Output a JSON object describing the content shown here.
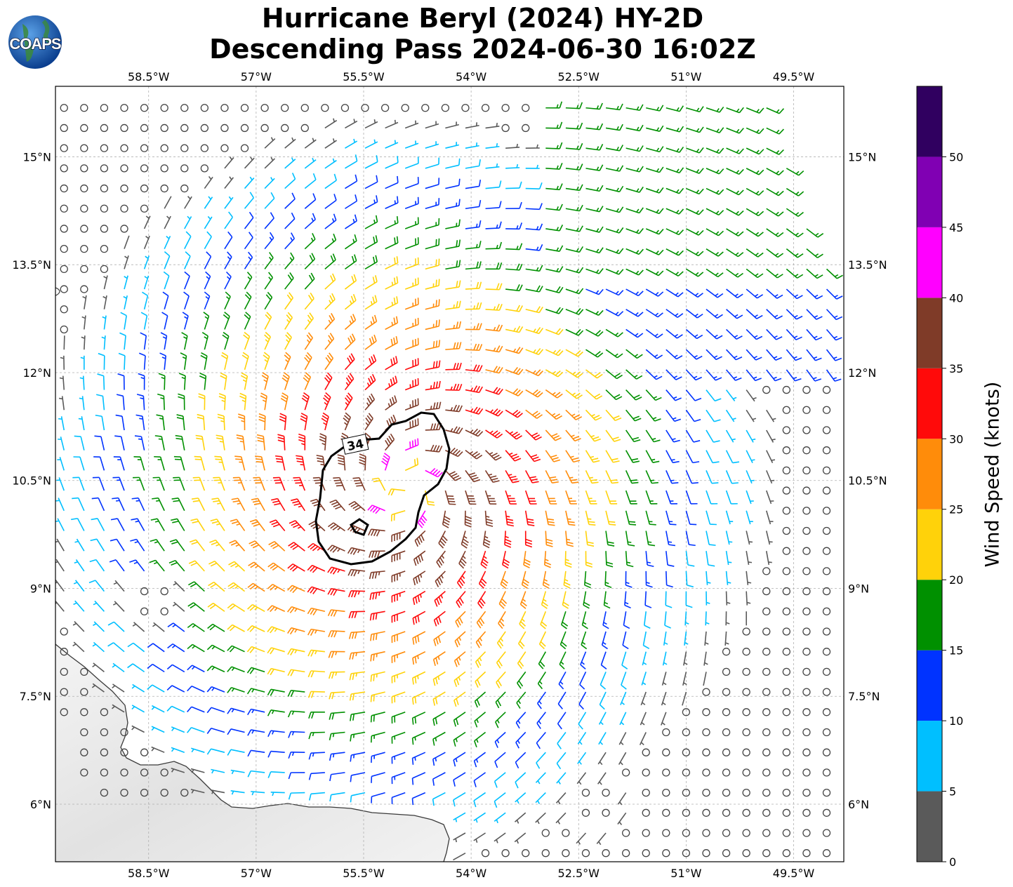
{
  "title": {
    "line1": "Hurricane Beryl (2024) HY-2D",
    "line2": "Descending Pass 2024-06-30 16:02Z"
  },
  "logo": {
    "text": "COAPS",
    "icon": "globe-icon"
  },
  "map": {
    "lon_range": [
      -59.8,
      -48.8
    ],
    "lat_range": [
      5.2,
      15.98
    ],
    "lon_ticks": [
      -58.5,
      -57,
      -55.5,
      -54,
      -52.5,
      -51,
      -49.5
    ],
    "lon_tick_labels": [
      "58.5°W",
      "57°W",
      "55.5°W",
      "54°W",
      "52.5°W",
      "51°W",
      "49.5°W"
    ],
    "lat_ticks": [
      15,
      13.5,
      12,
      10.5,
      9,
      7.5,
      6
    ],
    "lat_tick_labels": [
      "15°N",
      "13.5°N",
      "12°N",
      "10.5°N",
      "9°N",
      "7.5°N",
      "6°N"
    ],
    "grid": true,
    "storm_center": {
      "lon": -54.9,
      "lat": 10.4
    },
    "wind_radius_contour": {
      "label": "34",
      "color": "#000000"
    },
    "feature_icons": [
      "wind-barb-icon",
      "calm-circle-icon",
      "coastline-icon"
    ]
  },
  "colorbar": {
    "label": "Wind Speed (knots)",
    "ticks": [
      "0",
      "5",
      "10",
      "15",
      "20",
      "25",
      "30",
      "35",
      "40",
      "45",
      "50"
    ],
    "bins": [
      {
        "min": 0,
        "max": 5,
        "color": "#5a5a5a"
      },
      {
        "min": 5,
        "max": 10,
        "color": "#00bfff"
      },
      {
        "min": 10,
        "max": 15,
        "color": "#0033ff"
      },
      {
        "min": 15,
        "max": 20,
        "color": "#009000"
      },
      {
        "min": 20,
        "max": 25,
        "color": "#ffd20a"
      },
      {
        "min": 25,
        "max": 30,
        "color": "#ff8c0a"
      },
      {
        "min": 30,
        "max": 35,
        "color": "#ff0a0a"
      },
      {
        "min": 35,
        "max": 40,
        "color": "#7f3b28"
      },
      {
        "min": 40,
        "max": 45,
        "color": "#ff00ff"
      },
      {
        "min": 45,
        "max": 50,
        "color": "#8000b3"
      },
      {
        "min": 50,
        "max": 55,
        "color": "#300060"
      }
    ]
  }
}
